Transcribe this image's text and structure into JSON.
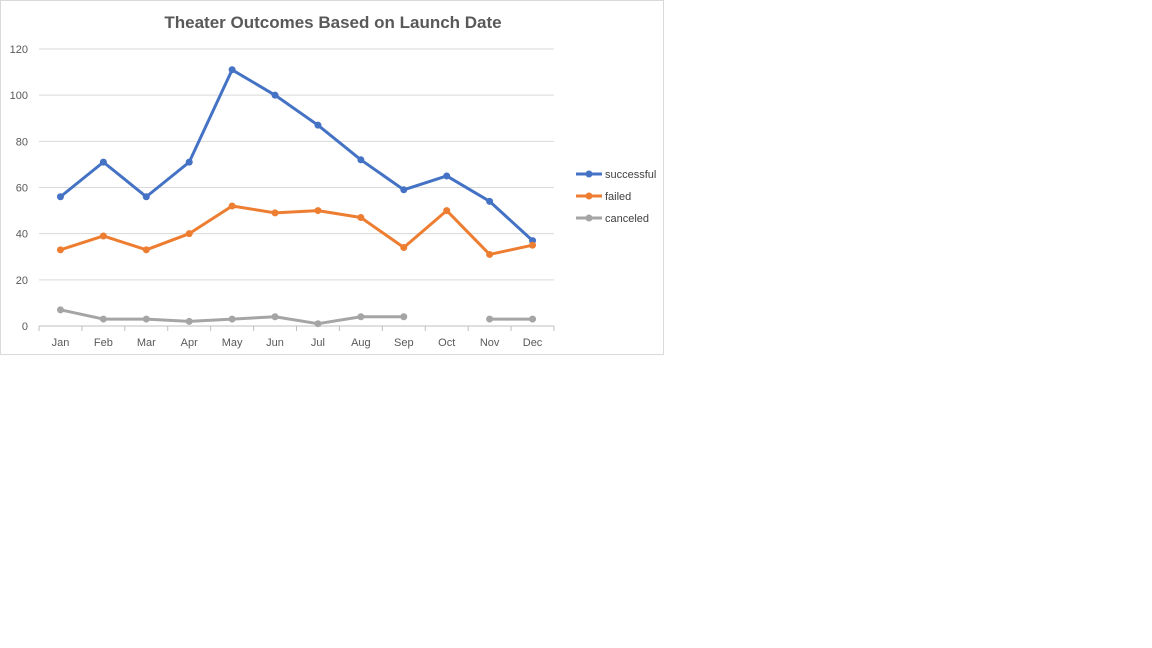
{
  "chart_data": {
    "type": "line",
    "title": "Theater Outcomes Based on Launch Date",
    "xlabel": "",
    "ylabel": "",
    "categories": [
      "Jan",
      "Feb",
      "Mar",
      "Apr",
      "May",
      "Jun",
      "Jul",
      "Aug",
      "Sep",
      "Oct",
      "Nov",
      "Dec"
    ],
    "ylim": [
      0,
      120
    ],
    "yticks": [
      "0",
      "20",
      "40",
      "60",
      "80",
      "100",
      "120"
    ],
    "grid": true,
    "legend_position": "right",
    "series": [
      {
        "name": "successful",
        "color": "#4472C4",
        "values": [
          56,
          71,
          56,
          71,
          111,
          100,
          87,
          72,
          59,
          65,
          54,
          37
        ]
      },
      {
        "name": "failed",
        "color": "#ED7D31",
        "values": [
          33,
          39,
          33,
          40,
          52,
          49,
          50,
          47,
          34,
          50,
          31,
          35
        ]
      },
      {
        "name": "canceled",
        "color": "#A5A5A5",
        "values": [
          7,
          3,
          3,
          2,
          3,
          4,
          1,
          4,
          4,
          null,
          3,
          3
        ]
      }
    ]
  }
}
